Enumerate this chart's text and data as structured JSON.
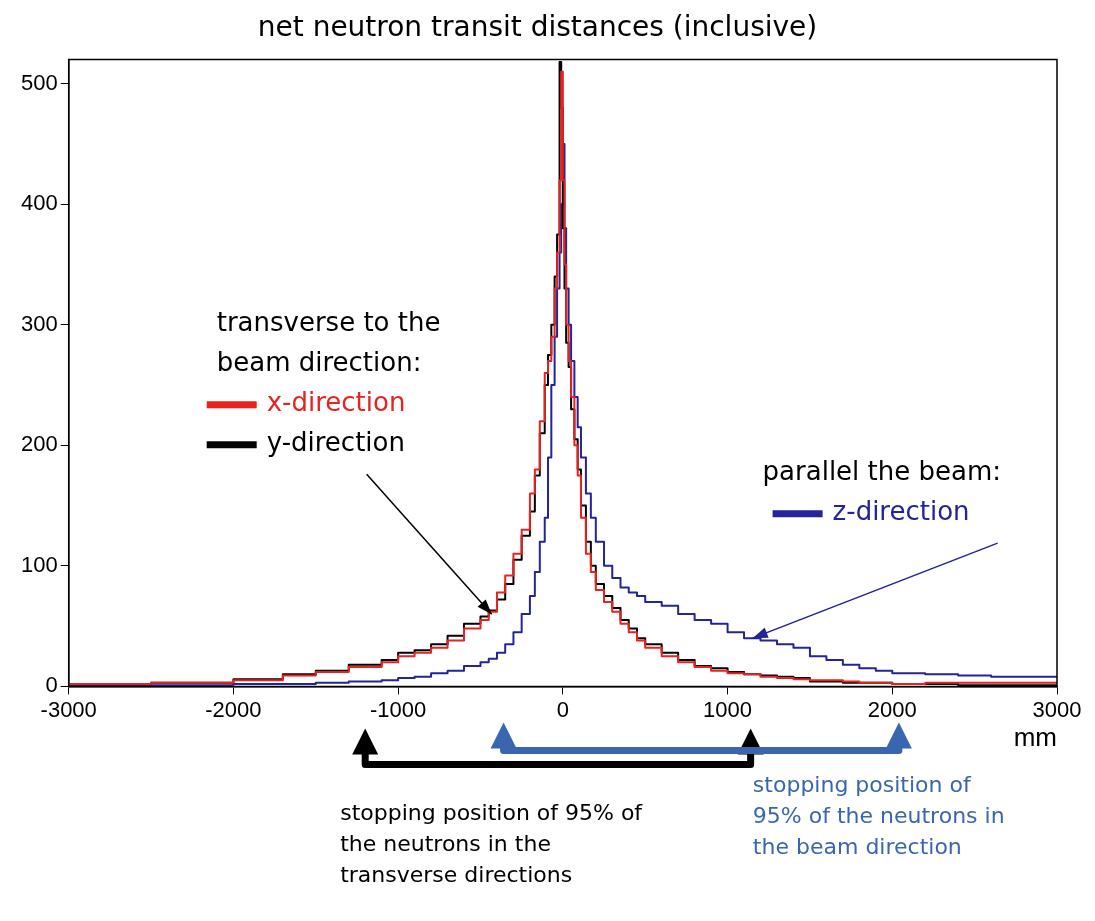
{
  "chart_data": {
    "type": "step",
    "title": "net neutron transit distances (inclusive)",
    "xlabel": "mm",
    "x": [
      -3000,
      -2500,
      -2000,
      -1700,
      -1500,
      -1300,
      -1100,
      -1000,
      -900,
      -800,
      -700,
      -600,
      -500,
      -450,
      -400,
      -350,
      -300,
      -250,
      -200,
      -170,
      -140,
      -110,
      -90,
      -70,
      -50,
      -35,
      -20,
      -10,
      0,
      10,
      20,
      35,
      50,
      70,
      90,
      110,
      140,
      170,
      200,
      250,
      300,
      350,
      400,
      450,
      500,
      600,
      700,
      800,
      900,
      1000,
      1100,
      1200,
      1300,
      1400,
      1500,
      1600,
      1700,
      1800,
      1900,
      2000,
      2200,
      2400,
      2600,
      2800,
      3000
    ],
    "series": [
      {
        "name": "x-direction",
        "color": "#e8221f",
        "values": [
          2,
          2,
          3,
          5,
          9,
          12,
          16,
          20,
          25,
          28,
          32,
          38,
          48,
          55,
          62,
          78,
          92,
          110,
          130,
          160,
          180,
          220,
          260,
          270,
          290,
          330,
          360,
          420,
          510,
          420,
          350,
          300,
          270,
          240,
          200,
          175,
          140,
          110,
          95,
          80,
          70,
          62,
          52,
          45,
          38,
          32,
          25,
          20,
          16,
          13,
          11,
          10,
          8,
          7,
          6,
          5,
          5,
          4,
          3,
          3,
          2,
          3,
          3,
          3,
          3
        ]
      },
      {
        "name": "y-direction",
        "color": "#000000",
        "values": [
          1,
          2,
          3,
          6,
          10,
          13,
          18,
          22,
          28,
          30,
          35,
          42,
          52,
          58,
          63,
          72,
          85,
          105,
          125,
          145,
          175,
          210,
          250,
          275,
          300,
          340,
          375,
          518,
          480,
          380,
          330,
          285,
          265,
          230,
          205,
          180,
          150,
          120,
          100,
          85,
          75,
          65,
          55,
          48,
          40,
          35,
          28,
          22,
          17,
          15,
          12,
          10,
          9,
          8,
          7,
          4,
          4,
          3,
          3,
          3,
          2,
          2,
          1,
          1,
          1
        ]
      },
      {
        "name": "z-direction",
        "color": "#23239a",
        "values": [
          0,
          1,
          1,
          2,
          2,
          3,
          4,
          5,
          7,
          8,
          11,
          13,
          17,
          20,
          23,
          28,
          35,
          45,
          60,
          75,
          95,
          120,
          140,
          190,
          250,
          290,
          330,
          360,
          400,
          450,
          380,
          330,
          300,
          270,
          240,
          215,
          190,
          160,
          140,
          120,
          100,
          90,
          82,
          78,
          75,
          70,
          67,
          60,
          55,
          52,
          45,
          40,
          38,
          35,
          32,
          25,
          22,
          18,
          15,
          13,
          11,
          10,
          9,
          8,
          8
        ]
      }
    ],
    "annotations": [
      "transverse to the beam direction:",
      "parallel the beam:",
      "stopping position of 95% of the neutrons in the transverse directions",
      "stopping position of 95% of the neutrons in the beam direction"
    ],
    "xlim": [
      -3000,
      3000
    ],
    "xticks": [
      -3000,
      -2000,
      -1000,
      0,
      1000,
      2000,
      3000
    ],
    "ylim": [
      0,
      520
    ],
    "yticks": [
      0,
      100,
      200,
      300,
      400,
      500
    ],
    "grid": false,
    "legend": "center"
  }
}
